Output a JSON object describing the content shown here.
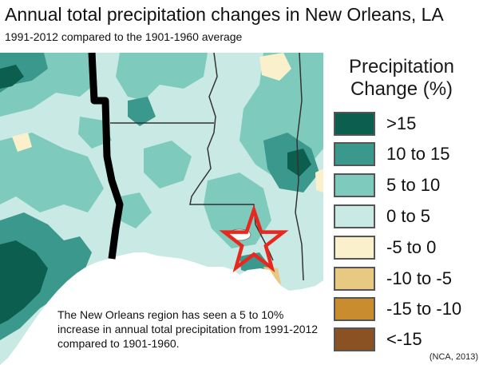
{
  "title": "Annual total precipitation changes in New Orleans, LA",
  "subtitle": "1991-2012 compared to the 1901-1960 average",
  "map": {
    "region": "Louisiana and surrounding Gulf Coast states",
    "marker": "red-star-new-orleans"
  },
  "legend": {
    "title_line1": "Precipitation",
    "title_line2": "Change (%)",
    "items": [
      {
        "label": ">15",
        "color": "#0c5e4f"
      },
      {
        "label": "10 to 15",
        "color": "#3a998c"
      },
      {
        "label": "5 to 10",
        "color": "#7ecbbd"
      },
      {
        "label": "0 to 5",
        "color": "#c9e9e4"
      },
      {
        "label": "-5 to 0",
        "color": "#faf0cc"
      },
      {
        "label": "-10 to -5",
        "color": "#e8c981"
      },
      {
        "label": "-15 to -10",
        "color": "#c98c2f"
      },
      {
        "label": "<-15",
        "color": "#8a5222"
      }
    ]
  },
  "caption": "The New Orleans region has seen a 5 to 10% increase in annual total precipitation from 1991-2012 compared to 1901-1960.",
  "credit": "(NCA, 2013)",
  "colors": {
    "gulf_water": "#ffffff",
    "state_border": "#333333",
    "thick_border": "#000000",
    "star": "#e8281f"
  }
}
